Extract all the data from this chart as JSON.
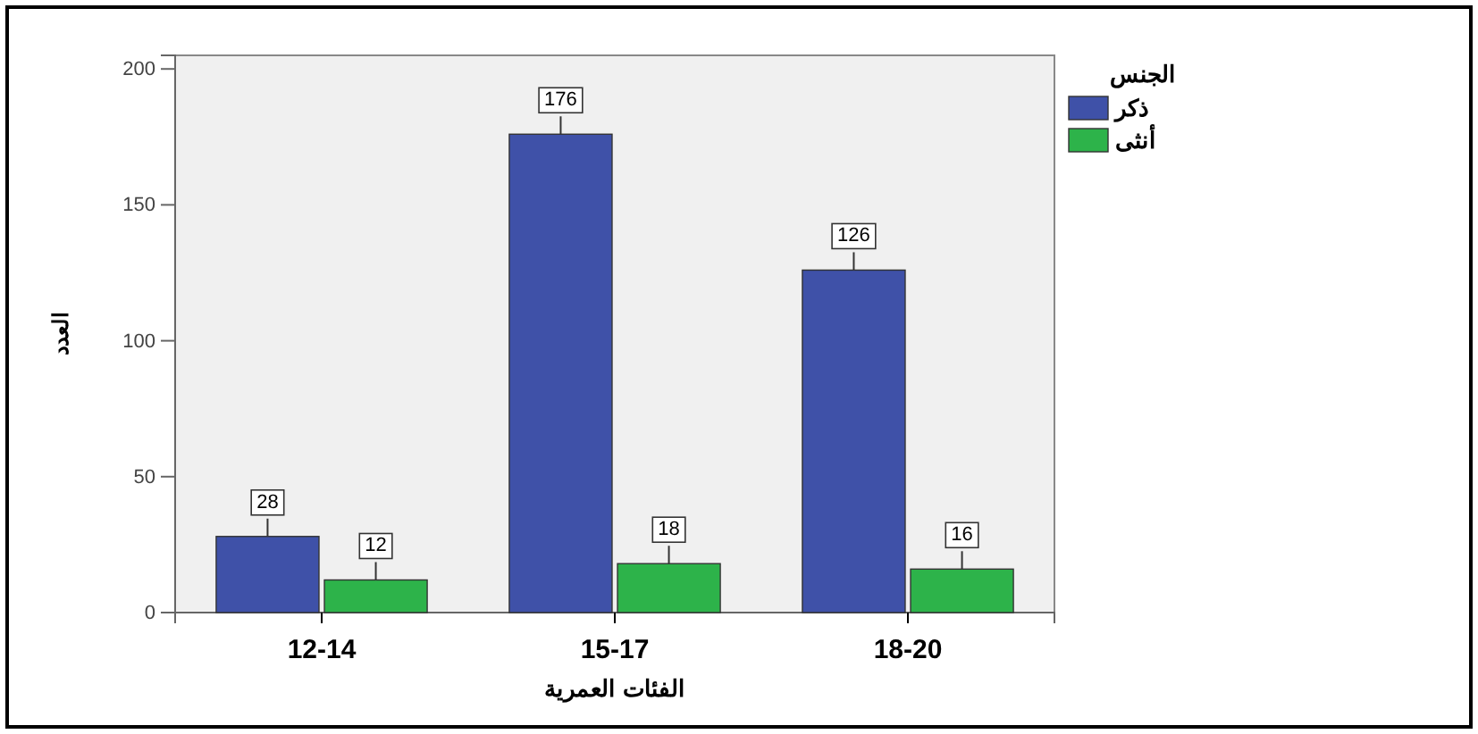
{
  "chart_data": {
    "type": "bar",
    "xlabel": "الفئات العمرية",
    "ylabel": "العدد",
    "legend_title": "الجنس",
    "legend": "right",
    "categories": [
      "12-14",
      "15-17",
      "18-20"
    ],
    "series": [
      {
        "name": "ذكر",
        "color": "#3f51a8",
        "values": [
          28,
          176,
          126
        ]
      },
      {
        "name": "أنثى",
        "color": "#2db34a",
        "values": [
          12,
          18,
          16
        ]
      }
    ],
    "ylim": [
      0,
      205
    ],
    "yticks": [
      0,
      50,
      100,
      150,
      200
    ],
    "data_labels": true
  }
}
